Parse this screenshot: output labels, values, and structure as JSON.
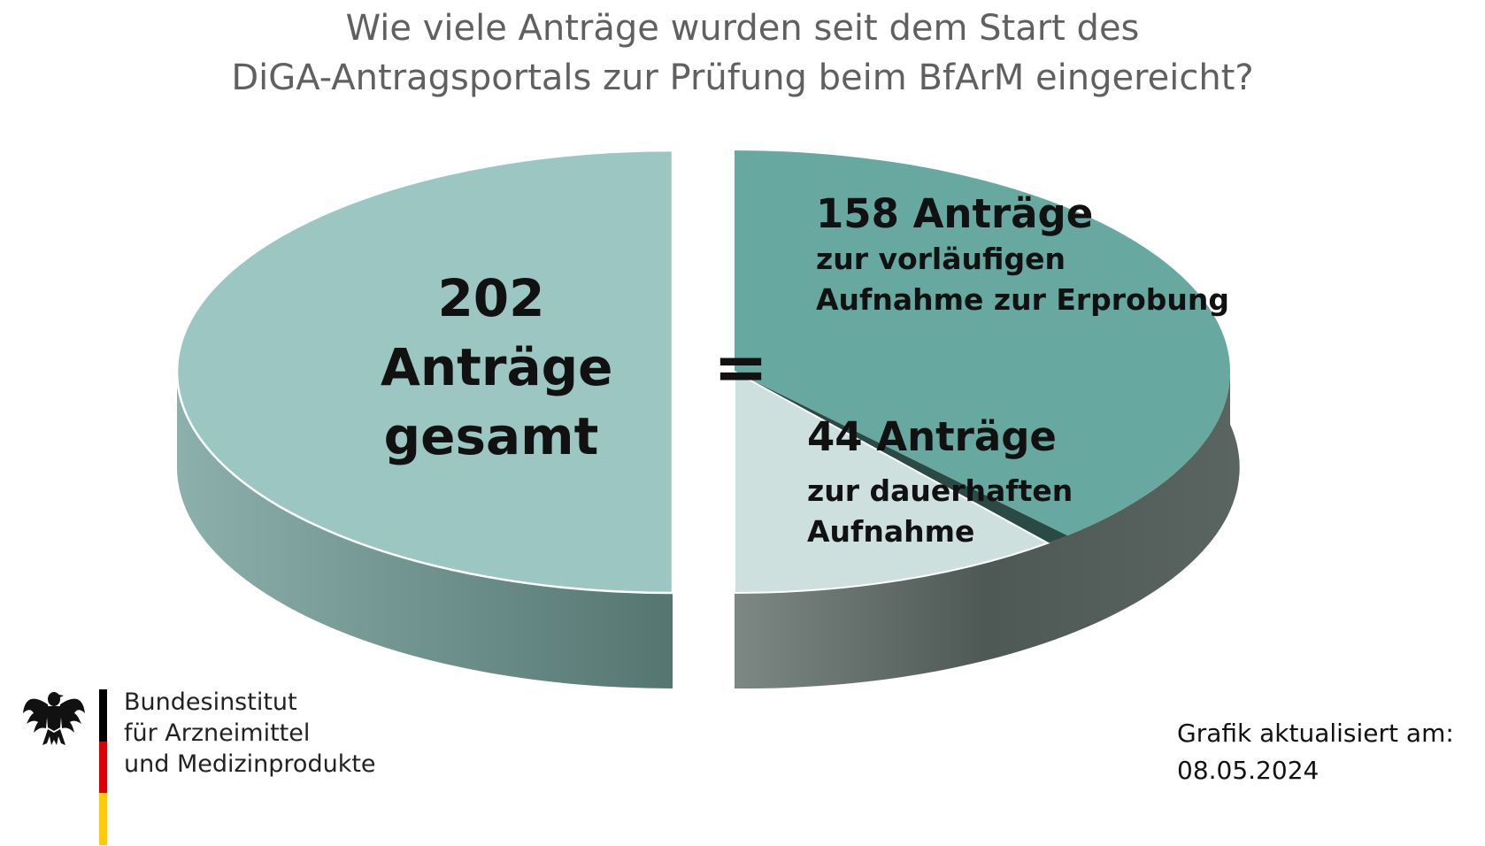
{
  "title": {
    "line1": "Wie viele Anträge wurden seit dem Start des",
    "line2": "DiGA-Antragsportals zur Prüfung beim BfArM eingereicht?"
  },
  "chart_data": {
    "type": "pie",
    "title": "Wie viele Anträge wurden seit dem Start des DiGA-Antragsportals zur Prüfung beim BfArM eingereicht?",
    "total": {
      "value": 202,
      "label_number": "202",
      "label_word": "Anträge",
      "label_suffix": "gesamt",
      "color": "#9CC6C1"
    },
    "equals_sign": "=",
    "segments": [
      {
        "value": 158,
        "label": "158 Anträge",
        "sublabel_line1": "zur vorläufigen",
        "sublabel_line2": "Aufnahme zur Erprobung",
        "color": "#67A9A1"
      },
      {
        "value": 44,
        "label": "44 Anträge",
        "sublabel_line1": "zur dauerhaften",
        "sublabel_line2": "Aufnahme",
        "color": "#CDE0DE"
      }
    ],
    "separator_color": "#2C4A45",
    "side_color_dark": "#4F5955",
    "side_color_light": "#8CADA9"
  },
  "logo": {
    "line1": "Bundesinstitut",
    "line2": "für Arzneimittel",
    "line3": "und Medizinprodukte",
    "icon": "federal-eagle-icon",
    "flag_colors": [
      "#000000",
      "#DD0000",
      "#FFCC00"
    ]
  },
  "footer": {
    "updated_label": "Grafik aktualisiert am:",
    "updated_date": "08.05.2024"
  }
}
